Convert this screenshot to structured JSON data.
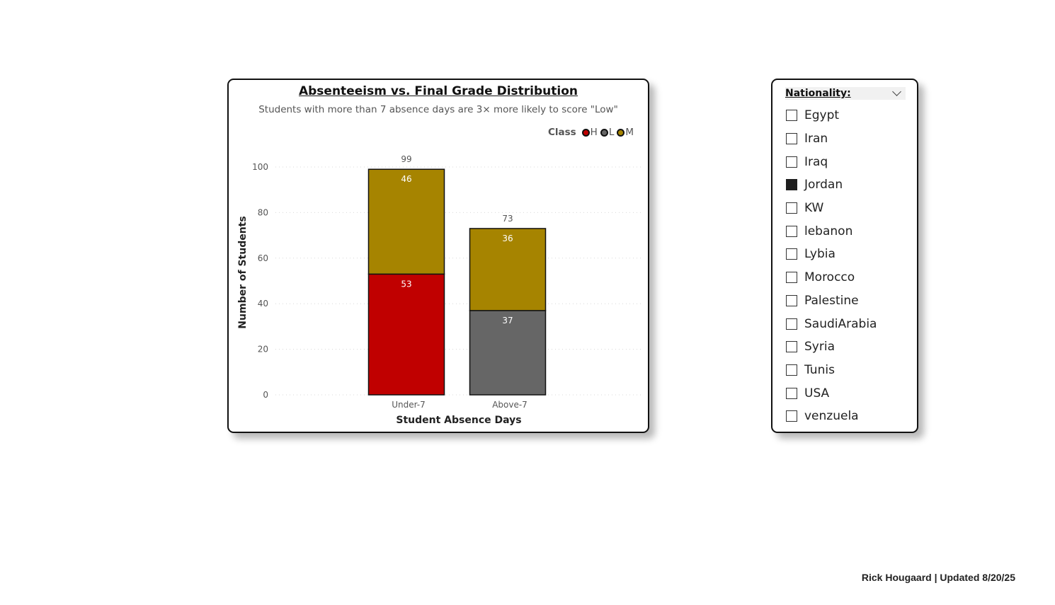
{
  "chart": {
    "title": "Absenteeism vs. Final Grade Distribution",
    "subtitle": "Students with more than 7 absence days are 3× more likely to score \"Low\"",
    "legend_title": "Class"
  },
  "chart_data": {
    "type": "bar",
    "stacked": true,
    "categories": [
      "Under-7",
      "Above-7"
    ],
    "series": [
      {
        "name": "H",
        "values": [
          53,
          0
        ],
        "color": "#c00000"
      },
      {
        "name": "L",
        "values": [
          0,
          37
        ],
        "color": "#666666"
      },
      {
        "name": "M",
        "values": [
          46,
          36
        ],
        "color": "#a68400"
      }
    ],
    "totals": [
      99,
      73
    ],
    "xlabel": "Student Absence Days",
    "ylabel": "Number of Students",
    "ylim": [
      0,
      100
    ],
    "yticks": [
      "0",
      "20",
      "40",
      "60",
      "80",
      "100"
    ],
    "grid": true,
    "legend_position": "top-right"
  },
  "slicer": {
    "title": "Nationality:",
    "items": [
      {
        "label": "Egypt",
        "checked": false
      },
      {
        "label": "Iran",
        "checked": false
      },
      {
        "label": "Iraq",
        "checked": false
      },
      {
        "label": "Jordan",
        "checked": true
      },
      {
        "label": "KW",
        "checked": false
      },
      {
        "label": "lebanon",
        "checked": false
      },
      {
        "label": "Lybia",
        "checked": false
      },
      {
        "label": "Morocco",
        "checked": false
      },
      {
        "label": "Palestine",
        "checked": false
      },
      {
        "label": "SaudiArabia",
        "checked": false
      },
      {
        "label": "Syria",
        "checked": false
      },
      {
        "label": "Tunis",
        "checked": false
      },
      {
        "label": "USA",
        "checked": false
      },
      {
        "label": "venzuela",
        "checked": false
      }
    ]
  },
  "footer": {
    "text": "Rick Hougaard | Updated 8/20/25"
  }
}
